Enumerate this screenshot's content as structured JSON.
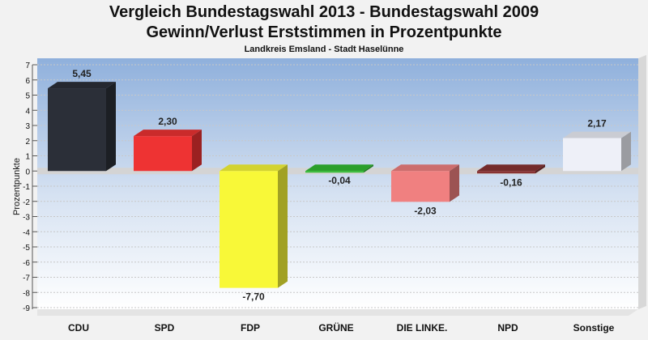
{
  "chart_data": {
    "type": "bar",
    "title": "Vergleich Bundestagswahl 2013 - Bundestagswahl 2009",
    "subtitle": "Gewinn/Verlust Erststimmen in Prozentpunkte",
    "subsubtitle": "Landkreis Emsland - Stadt Haselünne",
    "ylabel": "Prozentpunkte",
    "xlabel": "",
    "ylim": [
      -9,
      7
    ],
    "yticks": [
      7,
      6,
      5,
      4,
      3,
      2,
      1,
      0,
      -1,
      -2,
      -3,
      -4,
      -5,
      -6,
      -7,
      -8,
      -9
    ],
    "grid": true,
    "categories": [
      "CDU",
      "SPD",
      "FDP",
      "GRÜNE",
      "DIE LINKE.",
      "NPD",
      "Sonstige"
    ],
    "values": [
      5.45,
      2.3,
      -7.7,
      -0.04,
      -2.03,
      -0.16,
      2.17
    ],
    "value_labels": [
      "5,45",
      "2,30",
      "-7,70",
      "-0,04",
      "-2,03",
      "-0,16",
      "2,17"
    ],
    "colors": [
      "#2b2f38",
      "#ee3333",
      "#f8f838",
      "#33bb33",
      "#f08080",
      "#883333",
      "#eef0f8"
    ]
  }
}
